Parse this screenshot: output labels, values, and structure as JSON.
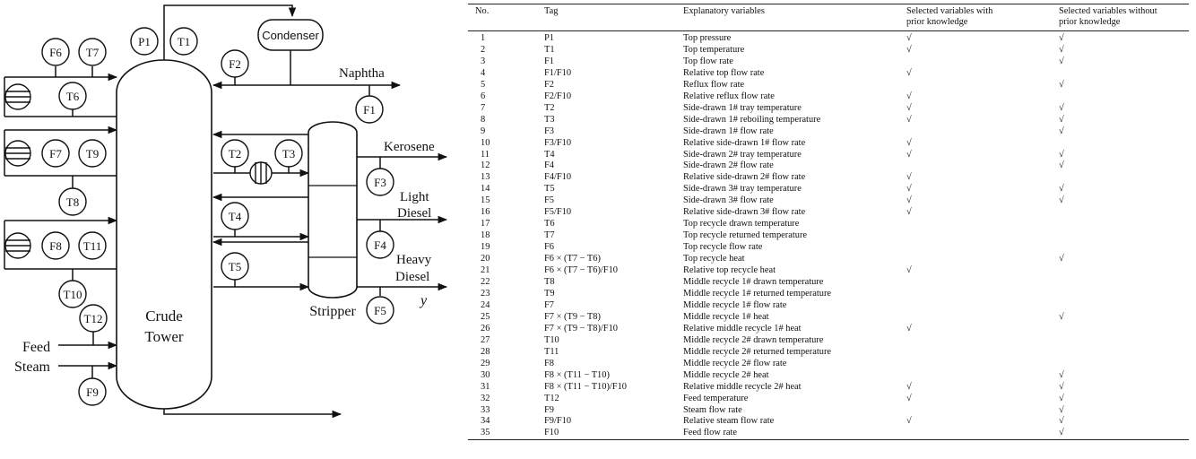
{
  "diagram": {
    "crude_tower_label": [
      "Crude",
      "Tower"
    ],
    "stripper_label": "Stripper",
    "condenser_label": "Condenser",
    "naphtha_label": "Naphtha",
    "kerosene_label": "Kerosene",
    "light_diesel_label": [
      "Light",
      "Diesel"
    ],
    "heavy_diesel_label": [
      "Heavy",
      "Diesel"
    ],
    "y_label": "y",
    "feed_label": "Feed",
    "steam_label": "Steam",
    "sensors": {
      "P1": "P1",
      "T1": "T1",
      "F6": "F6",
      "T7": "T7",
      "T6": "T6",
      "F2": "F2",
      "F1": "F1",
      "F7": "F7",
      "T9": "T9",
      "T2": "T2",
      "T3": "T3",
      "F3": "F3",
      "T8": "T8",
      "F8": "F8",
      "T11": "T11",
      "T4": "T4",
      "F4": "F4",
      "T5": "T5",
      "T10": "T10",
      "T12": "T12",
      "F5": "F5",
      "F9": "F9"
    }
  },
  "table": {
    "headers": {
      "no": "No.",
      "tag": "Tag",
      "explanatory": "Explanatory variables",
      "with_prior": [
        "Selected variables with",
        "prior knowledge"
      ],
      "without_prior": [
        "Selected variables without",
        "prior knowledge"
      ]
    },
    "check_symbol": "√",
    "rows": [
      {
        "no": "1",
        "tag": "P1",
        "desc": "Top pressure",
        "with": true,
        "without": true
      },
      {
        "no": "2",
        "tag": "T1",
        "desc": "Top temperature",
        "with": true,
        "without": true
      },
      {
        "no": "3",
        "tag": "F1",
        "desc": "Top flow rate",
        "with": false,
        "without": true
      },
      {
        "no": "4",
        "tag": "F1/F10",
        "desc": "Relative top flow rate",
        "with": true,
        "without": false
      },
      {
        "no": "5",
        "tag": "F2",
        "desc": "Reflux flow rate",
        "with": false,
        "without": true
      },
      {
        "no": "6",
        "tag": "F2/F10",
        "desc": "Relative reflux flow rate",
        "with": true,
        "without": false
      },
      {
        "no": "7",
        "tag": "T2",
        "desc": "Side-drawn 1# tray temperature",
        "with": true,
        "without": true
      },
      {
        "no": "8",
        "tag": "T3",
        "desc": "Side-drawn 1# reboiling temperature",
        "with": true,
        "without": true
      },
      {
        "no": "9",
        "tag": "F3",
        "desc": "Side-drawn 1# flow rate",
        "with": false,
        "without": true
      },
      {
        "no": "10",
        "tag": "F3/F10",
        "desc": "Relative side-drawn 1# flow rate",
        "with": true,
        "without": false
      },
      {
        "no": "11",
        "tag": "T4",
        "desc": "Side-drawn 2# tray temperature",
        "with": true,
        "without": true
      },
      {
        "no": "12",
        "tag": "F4",
        "desc": "Side-drawn 2# flow rate",
        "with": false,
        "without": true
      },
      {
        "no": "13",
        "tag": "F4/F10",
        "desc": "Relative side-drawn 2# flow rate",
        "with": true,
        "without": false
      },
      {
        "no": "14",
        "tag": "T5",
        "desc": "Side-drawn 3# tray temperature",
        "with": true,
        "without": true
      },
      {
        "no": "15",
        "tag": "F5",
        "desc": "Side-drawn 3# flow rate",
        "with": true,
        "without": true
      },
      {
        "no": "16",
        "tag": "F5/F10",
        "desc": "Relative side-drawn 3# flow rate",
        "with": true,
        "without": false
      },
      {
        "no": "17",
        "tag": "T6",
        "desc": "Top recycle drawn temperature",
        "with": false,
        "without": false
      },
      {
        "no": "18",
        "tag": "T7",
        "desc": "Top recycle returned temperature",
        "with": false,
        "without": false
      },
      {
        "no": "19",
        "tag": "F6",
        "desc": "Top recycle flow rate",
        "with": false,
        "without": false
      },
      {
        "no": "20",
        "tag": "F6 × (T7 − T6)",
        "desc": "Top recycle heat",
        "with": false,
        "without": true
      },
      {
        "no": "21",
        "tag": "F6 × (T7 − T6)/F10",
        "desc": "Relative top recycle heat",
        "with": true,
        "without": false
      },
      {
        "no": "22",
        "tag": "T8",
        "desc": "Middle recycle 1# drawn temperature",
        "with": false,
        "without": false
      },
      {
        "no": "23",
        "tag": "T9",
        "desc": "Middle recycle 1# returned temperature",
        "with": false,
        "without": false
      },
      {
        "no": "24",
        "tag": "F7",
        "desc": "Middle recycle 1# flow rate",
        "with": false,
        "without": false
      },
      {
        "no": "25",
        "tag": "F7 × (T9 − T8)",
        "desc": "Middle recycle 1# heat",
        "with": false,
        "without": true
      },
      {
        "no": "26",
        "tag": "F7 × (T9 − T8)/F10",
        "desc": "Relative middle recycle 1# heat",
        "with": true,
        "without": false
      },
      {
        "no": "27",
        "tag": "T10",
        "desc": "Middle recycle 2# drawn temperature",
        "with": false,
        "without": false
      },
      {
        "no": "28",
        "tag": "T11",
        "desc": "Middle recycle 2# returned temperature",
        "with": false,
        "without": false
      },
      {
        "no": "29",
        "tag": "F8",
        "desc": "Middle recycle 2# flow rate",
        "with": false,
        "without": false
      },
      {
        "no": "30",
        "tag": "F8 × (T11 − T10)",
        "desc": "Middle recycle 2# heat",
        "with": false,
        "without": true
      },
      {
        "no": "31",
        "tag": "F8 × (T11 − T10)/F10",
        "desc": "Relative middle recycle 2# heat",
        "with": true,
        "without": true
      },
      {
        "no": "32",
        "tag": "T12",
        "desc": "Feed temperature",
        "with": true,
        "without": true
      },
      {
        "no": "33",
        "tag": "F9",
        "desc": "Steam flow rate",
        "with": false,
        "without": true
      },
      {
        "no": "34",
        "tag": "F9/F10",
        "desc": "Relative steam flow rate",
        "with": true,
        "without": true
      },
      {
        "no": "35",
        "tag": "F10",
        "desc": "Feed flow rate",
        "with": false,
        "without": true
      }
    ]
  }
}
